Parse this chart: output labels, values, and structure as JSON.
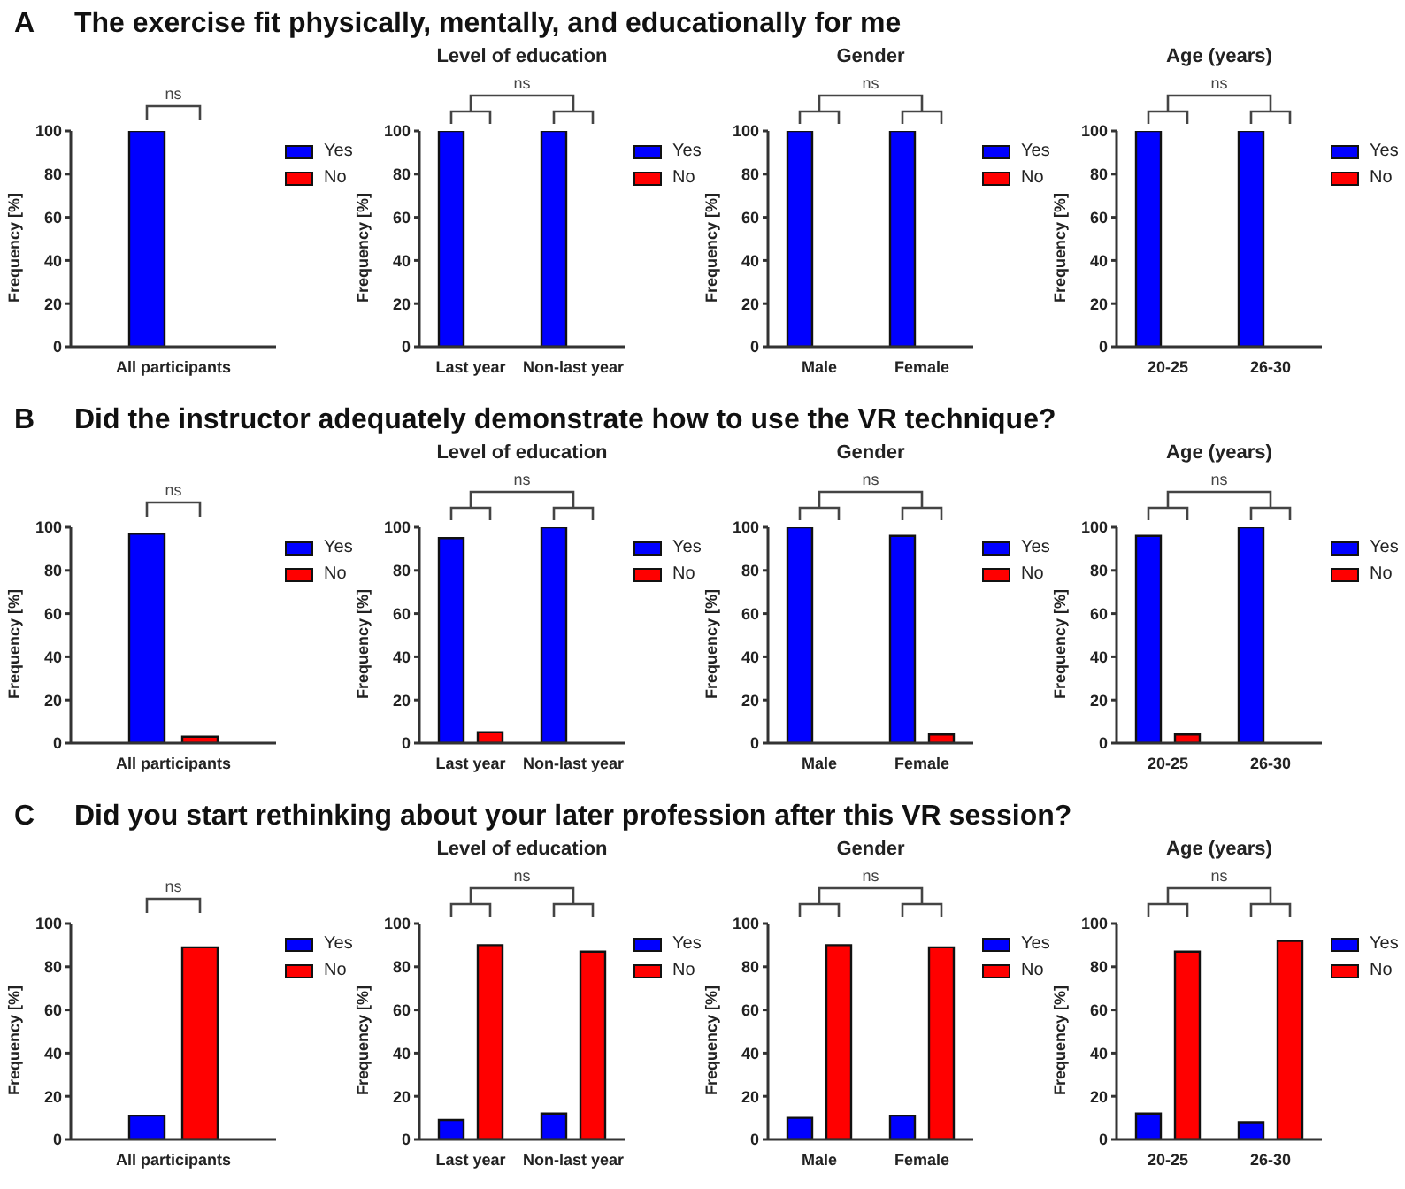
{
  "chart_data": [
    {
      "type": "bar",
      "title": "The exercise fit physically, mentally, and educationally for me",
      "annotations": [
        "A",
        "ns"
      ],
      "categories": [
        "All participants"
      ],
      "ylabel": "Frequency [%]",
      "ylim": [
        0,
        100
      ],
      "yticks": [
        0,
        20,
        40,
        60,
        80,
        100
      ],
      "legend": "right",
      "series": [
        {
          "name": "Yes",
          "color": "#0000ff",
          "values": [
            100
          ]
        },
        {
          "name": "No",
          "color": "#ff0000",
          "values": [
            0
          ]
        }
      ]
    },
    {
      "type": "bar",
      "title": "Level of education",
      "annotations": [
        "ns"
      ],
      "categories": [
        "Last year",
        "Non-last year"
      ],
      "ylabel": "Frequency [%]",
      "ylim": [
        0,
        100
      ],
      "yticks": [
        0,
        20,
        40,
        60,
        80,
        100
      ],
      "legend": "right",
      "series": [
        {
          "name": "Yes",
          "color": "#0000ff",
          "values": [
            100,
            100
          ]
        },
        {
          "name": "No",
          "color": "#ff0000",
          "values": [
            0,
            0
          ]
        }
      ]
    },
    {
      "type": "bar",
      "title": "Gender",
      "annotations": [
        "ns"
      ],
      "categories": [
        "Male",
        "Female"
      ],
      "ylabel": "Frequency [%]",
      "ylim": [
        0,
        100
      ],
      "yticks": [
        0,
        20,
        40,
        60,
        80,
        100
      ],
      "legend": "right",
      "series": [
        {
          "name": "Yes",
          "color": "#0000ff",
          "values": [
            100,
            100
          ]
        },
        {
          "name": "No",
          "color": "#ff0000",
          "values": [
            0,
            0
          ]
        }
      ]
    },
    {
      "type": "bar",
      "title": "Age (years)",
      "annotations": [
        "ns"
      ],
      "categories": [
        "20-25",
        "26-30"
      ],
      "ylabel": "Frequency [%]",
      "ylim": [
        0,
        100
      ],
      "yticks": [
        0,
        20,
        40,
        60,
        80,
        100
      ],
      "legend": "right",
      "series": [
        {
          "name": "Yes",
          "color": "#0000ff",
          "values": [
            100,
            100
          ]
        },
        {
          "name": "No",
          "color": "#ff0000",
          "values": [
            0,
            0
          ]
        }
      ]
    },
    {
      "type": "bar",
      "title": "Did the instructor adequately demonstrate how to use the VR technique?",
      "annotations": [
        "B",
        "ns"
      ],
      "categories": [
        "All participants"
      ],
      "ylabel": "Frequency [%]",
      "ylim": [
        0,
        100
      ],
      "yticks": [
        0,
        20,
        40,
        60,
        80,
        100
      ],
      "legend": "right",
      "series": [
        {
          "name": "Yes",
          "color": "#0000ff",
          "values": [
            97
          ]
        },
        {
          "name": "No",
          "color": "#ff0000",
          "values": [
            3
          ]
        }
      ]
    },
    {
      "type": "bar",
      "title": "Level of education",
      "annotations": [
        "ns"
      ],
      "categories": [
        "Last year",
        "Non-last year"
      ],
      "ylabel": "Frequency [%]",
      "ylim": [
        0,
        100
      ],
      "yticks": [
        0,
        20,
        40,
        60,
        80,
        100
      ],
      "legend": "right",
      "series": [
        {
          "name": "Yes",
          "color": "#0000ff",
          "values": [
            95,
            100
          ]
        },
        {
          "name": "No",
          "color": "#ff0000",
          "values": [
            5,
            0
          ]
        }
      ]
    },
    {
      "type": "bar",
      "title": "Gender",
      "annotations": [
        "ns"
      ],
      "categories": [
        "Male",
        "Female"
      ],
      "ylabel": "Frequency [%]",
      "ylim": [
        0,
        100
      ],
      "yticks": [
        0,
        20,
        40,
        60,
        80,
        100
      ],
      "legend": "right",
      "series": [
        {
          "name": "Yes",
          "color": "#0000ff",
          "values": [
            100,
            96
          ]
        },
        {
          "name": "No",
          "color": "#ff0000",
          "values": [
            0,
            4
          ]
        }
      ]
    },
    {
      "type": "bar",
      "title": "Age (years)",
      "annotations": [
        "ns"
      ],
      "categories": [
        "20-25",
        "26-30"
      ],
      "ylabel": "Frequency [%]",
      "ylim": [
        0,
        100
      ],
      "yticks": [
        0,
        20,
        40,
        60,
        80,
        100
      ],
      "legend": "right",
      "series": [
        {
          "name": "Yes",
          "color": "#0000ff",
          "values": [
            96,
            100
          ]
        },
        {
          "name": "No",
          "color": "#ff0000",
          "values": [
            4,
            0
          ]
        }
      ]
    },
    {
      "type": "bar",
      "title": "Did you start rethinking about your later profession after this VR session?",
      "annotations": [
        "C",
        "ns"
      ],
      "categories": [
        "All participants"
      ],
      "ylabel": "Frequency [%]",
      "ylim": [
        0,
        100
      ],
      "yticks": [
        0,
        20,
        40,
        60,
        80,
        100
      ],
      "legend": "right",
      "series": [
        {
          "name": "Yes",
          "color": "#0000ff",
          "values": [
            11
          ]
        },
        {
          "name": "No",
          "color": "#ff0000",
          "values": [
            89
          ]
        }
      ]
    },
    {
      "type": "bar",
      "title": "Level of education",
      "annotations": [
        "ns"
      ],
      "categories": [
        "Last year",
        "Non-last year"
      ],
      "ylabel": "Frequency [%]",
      "ylim": [
        0,
        100
      ],
      "yticks": [
        0,
        20,
        40,
        60,
        80,
        100
      ],
      "legend": "right",
      "series": [
        {
          "name": "Yes",
          "color": "#0000ff",
          "values": [
            9,
            12
          ]
        },
        {
          "name": "No",
          "color": "#ff0000",
          "values": [
            90,
            87
          ]
        }
      ]
    },
    {
      "type": "bar",
      "title": "Gender",
      "annotations": [
        "ns"
      ],
      "categories": [
        "Male",
        "Female"
      ],
      "ylabel": "Frequency [%]",
      "ylim": [
        0,
        100
      ],
      "yticks": [
        0,
        20,
        40,
        60,
        80,
        100
      ],
      "legend": "right",
      "series": [
        {
          "name": "Yes",
          "color": "#0000ff",
          "values": [
            10,
            11
          ]
        },
        {
          "name": "No",
          "color": "#ff0000",
          "values": [
            90,
            89
          ]
        }
      ]
    },
    {
      "type": "bar",
      "title": "Age (years)",
      "annotations": [
        "ns"
      ],
      "categories": [
        "20-25",
        "26-30"
      ],
      "ylabel": "Frequency [%]",
      "ylim": [
        0,
        100
      ],
      "yticks": [
        0,
        20,
        40,
        60,
        80,
        100
      ],
      "legend": "right",
      "series": [
        {
          "name": "Yes",
          "color": "#0000ff",
          "values": [
            12,
            8
          ]
        },
        {
          "name": "No",
          "color": "#ff0000",
          "values": [
            87,
            92
          ]
        }
      ]
    }
  ]
}
